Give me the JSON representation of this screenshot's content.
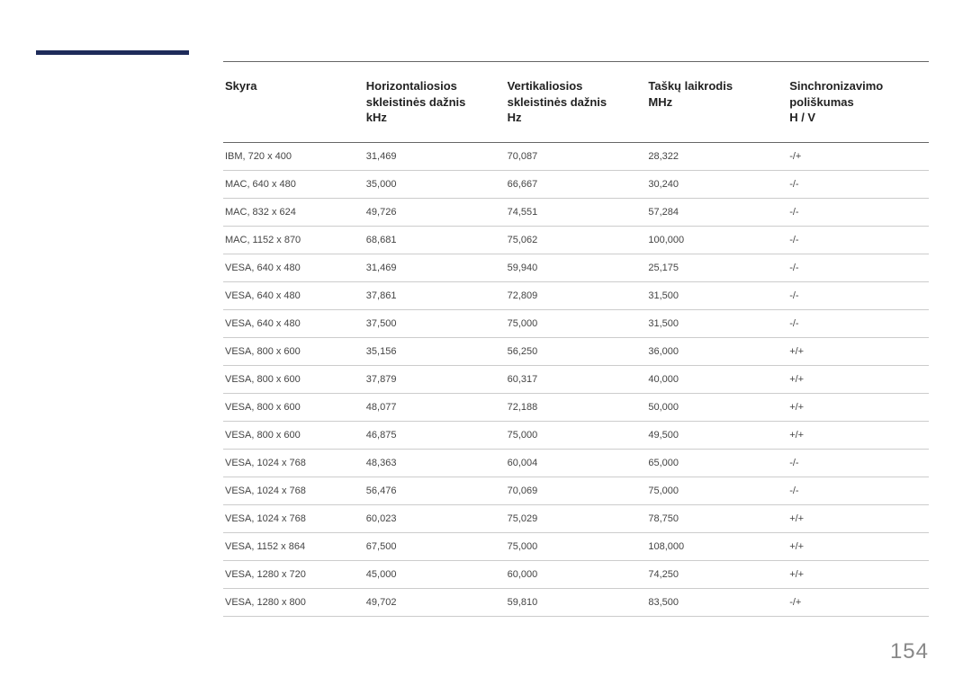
{
  "page_number": "154",
  "accent_color": "#1e2b5a",
  "table": {
    "columns": [
      {
        "label": "Skyra"
      },
      {
        "label": "Horizontaliosios\nskleistinės dažnis\nkHz"
      },
      {
        "label": "Vertikaliosios\nskleistinės dažnis\nHz"
      },
      {
        "label": "Taškų laikrodis\nMHz"
      },
      {
        "label": "Sinchronizavimo\npoliškumas\nH / V"
      }
    ],
    "rows": [
      [
        "IBM, 720 x 400",
        "31,469",
        "70,087",
        "28,322",
        "-/+"
      ],
      [
        "MAC, 640 x 480",
        "35,000",
        "66,667",
        "30,240",
        "-/-"
      ],
      [
        "MAC, 832 x 624",
        "49,726",
        "74,551",
        "57,284",
        "-/-"
      ],
      [
        "MAC, 1152 x 870",
        "68,681",
        "75,062",
        "100,000",
        "-/-"
      ],
      [
        "VESA, 640 x 480",
        "31,469",
        "59,940",
        "25,175",
        "-/-"
      ],
      [
        "VESA, 640 x 480",
        "37,861",
        "72,809",
        "31,500",
        "-/-"
      ],
      [
        "VESA, 640 x 480",
        "37,500",
        "75,000",
        "31,500",
        "-/-"
      ],
      [
        "VESA, 800 x 600",
        "35,156",
        "56,250",
        "36,000",
        "+/+"
      ],
      [
        "VESA, 800 x 600",
        "37,879",
        "60,317",
        "40,000",
        "+/+"
      ],
      [
        "VESA, 800 x 600",
        "48,077",
        "72,188",
        "50,000",
        "+/+"
      ],
      [
        "VESA, 800 x 600",
        "46,875",
        "75,000",
        "49,500",
        "+/+"
      ],
      [
        "VESA, 1024 x 768",
        "48,363",
        "60,004",
        "65,000",
        "-/-"
      ],
      [
        "VESA, 1024 x 768",
        "56,476",
        "70,069",
        "75,000",
        "-/-"
      ],
      [
        "VESA, 1024 x 768",
        "60,023",
        "75,029",
        "78,750",
        "+/+"
      ],
      [
        "VESA, 1152 x 864",
        "67,500",
        "75,000",
        "108,000",
        "+/+"
      ],
      [
        "VESA, 1280 x 720",
        "45,000",
        "60,000",
        "74,250",
        "+/+"
      ],
      [
        "VESA, 1280 x 800",
        "49,702",
        "59,810",
        "83,500",
        "-/+"
      ]
    ]
  }
}
